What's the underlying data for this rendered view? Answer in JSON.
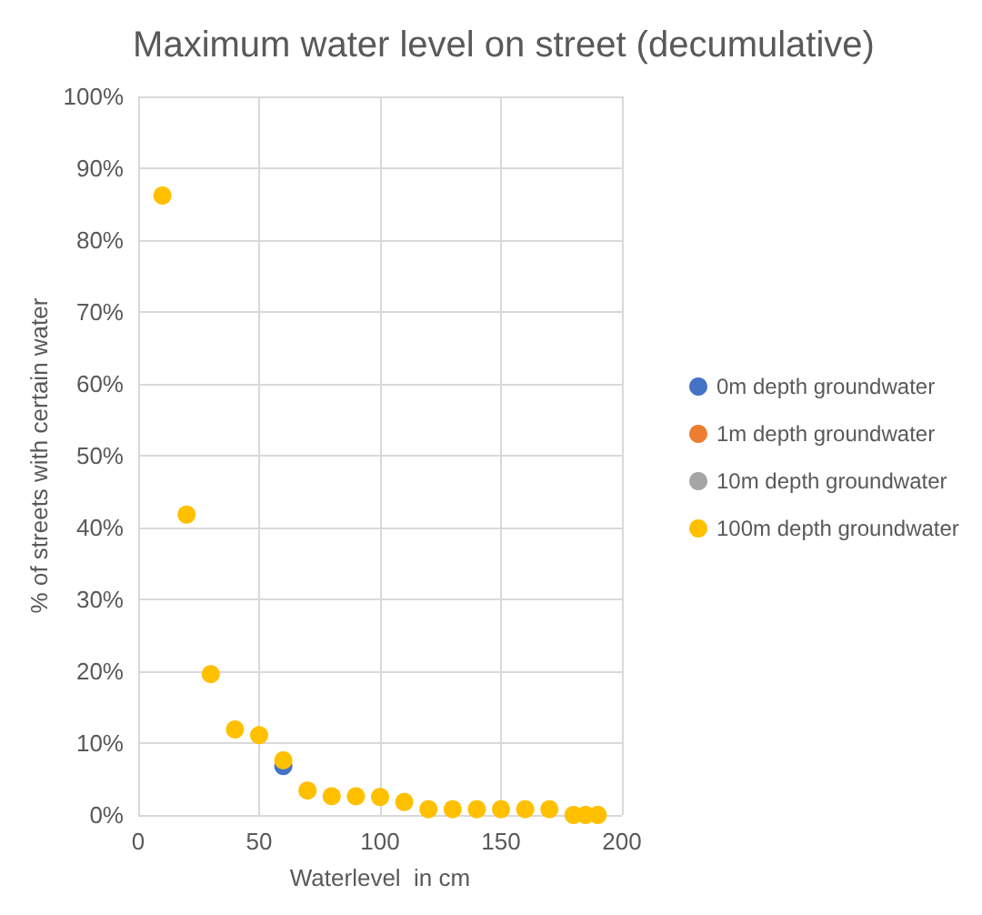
{
  "chart_data": {
    "type": "scatter",
    "title": "Maximum water level on street (decumulative)",
    "xlabel": "Waterlevel  in cm",
    "ylabel": "% of streets with certain water",
    "x": [
      10,
      20,
      30,
      40,
      50,
      60,
      70,
      80,
      90,
      100,
      110,
      120,
      130,
      140,
      150,
      160,
      170,
      180,
      185,
      190
    ],
    "series": [
      {
        "name": "0m depth groundwater",
        "color": "#4472c4",
        "values": [
          null,
          null,
          null,
          null,
          null,
          6.8,
          null,
          null,
          null,
          null,
          null,
          null,
          null,
          null,
          null,
          null,
          null,
          null,
          null,
          null
        ]
      },
      {
        "name": "1m depth groundwater",
        "color": "#ed7d31",
        "values": [
          null,
          null,
          null,
          null,
          null,
          null,
          null,
          null,
          null,
          null,
          null,
          null,
          null,
          null,
          null,
          null,
          null,
          null,
          null,
          null
        ]
      },
      {
        "name": "10m depth groundwater",
        "color": "#a5a5a5",
        "values": [
          null,
          null,
          null,
          null,
          null,
          null,
          null,
          null,
          null,
          null,
          null,
          null,
          null,
          null,
          null,
          null,
          null,
          null,
          null,
          null
        ]
      },
      {
        "name": "100m depth groundwater",
        "color": "#ffc000",
        "values": [
          86.2,
          41.8,
          19.6,
          11.9,
          11.1,
          7.6,
          3.4,
          2.6,
          2.6,
          2.5,
          1.8,
          0.8,
          0.8,
          0.8,
          0.8,
          0.8,
          0.8,
          0,
          0,
          0
        ]
      }
    ],
    "xlim": [
      0,
      200
    ],
    "xticks": [
      0,
      50,
      100,
      150,
      200
    ],
    "ylim": [
      0,
      100
    ],
    "yticks": [
      {
        "value": 0,
        "label": "0%"
      },
      {
        "value": 10,
        "label": "10%"
      },
      {
        "value": 20,
        "label": "20%"
      },
      {
        "value": 30,
        "label": "30%"
      },
      {
        "value": 40,
        "label": "40%"
      },
      {
        "value": 50,
        "label": "50%"
      },
      {
        "value": 60,
        "label": "60%"
      },
      {
        "value": 70,
        "label": "70%"
      },
      {
        "value": 80,
        "label": "80%"
      },
      {
        "value": 90,
        "label": "90%"
      },
      {
        "value": 100,
        "label": "100%"
      }
    ],
    "grid": true,
    "legend": "right",
    "marker": "circle"
  }
}
